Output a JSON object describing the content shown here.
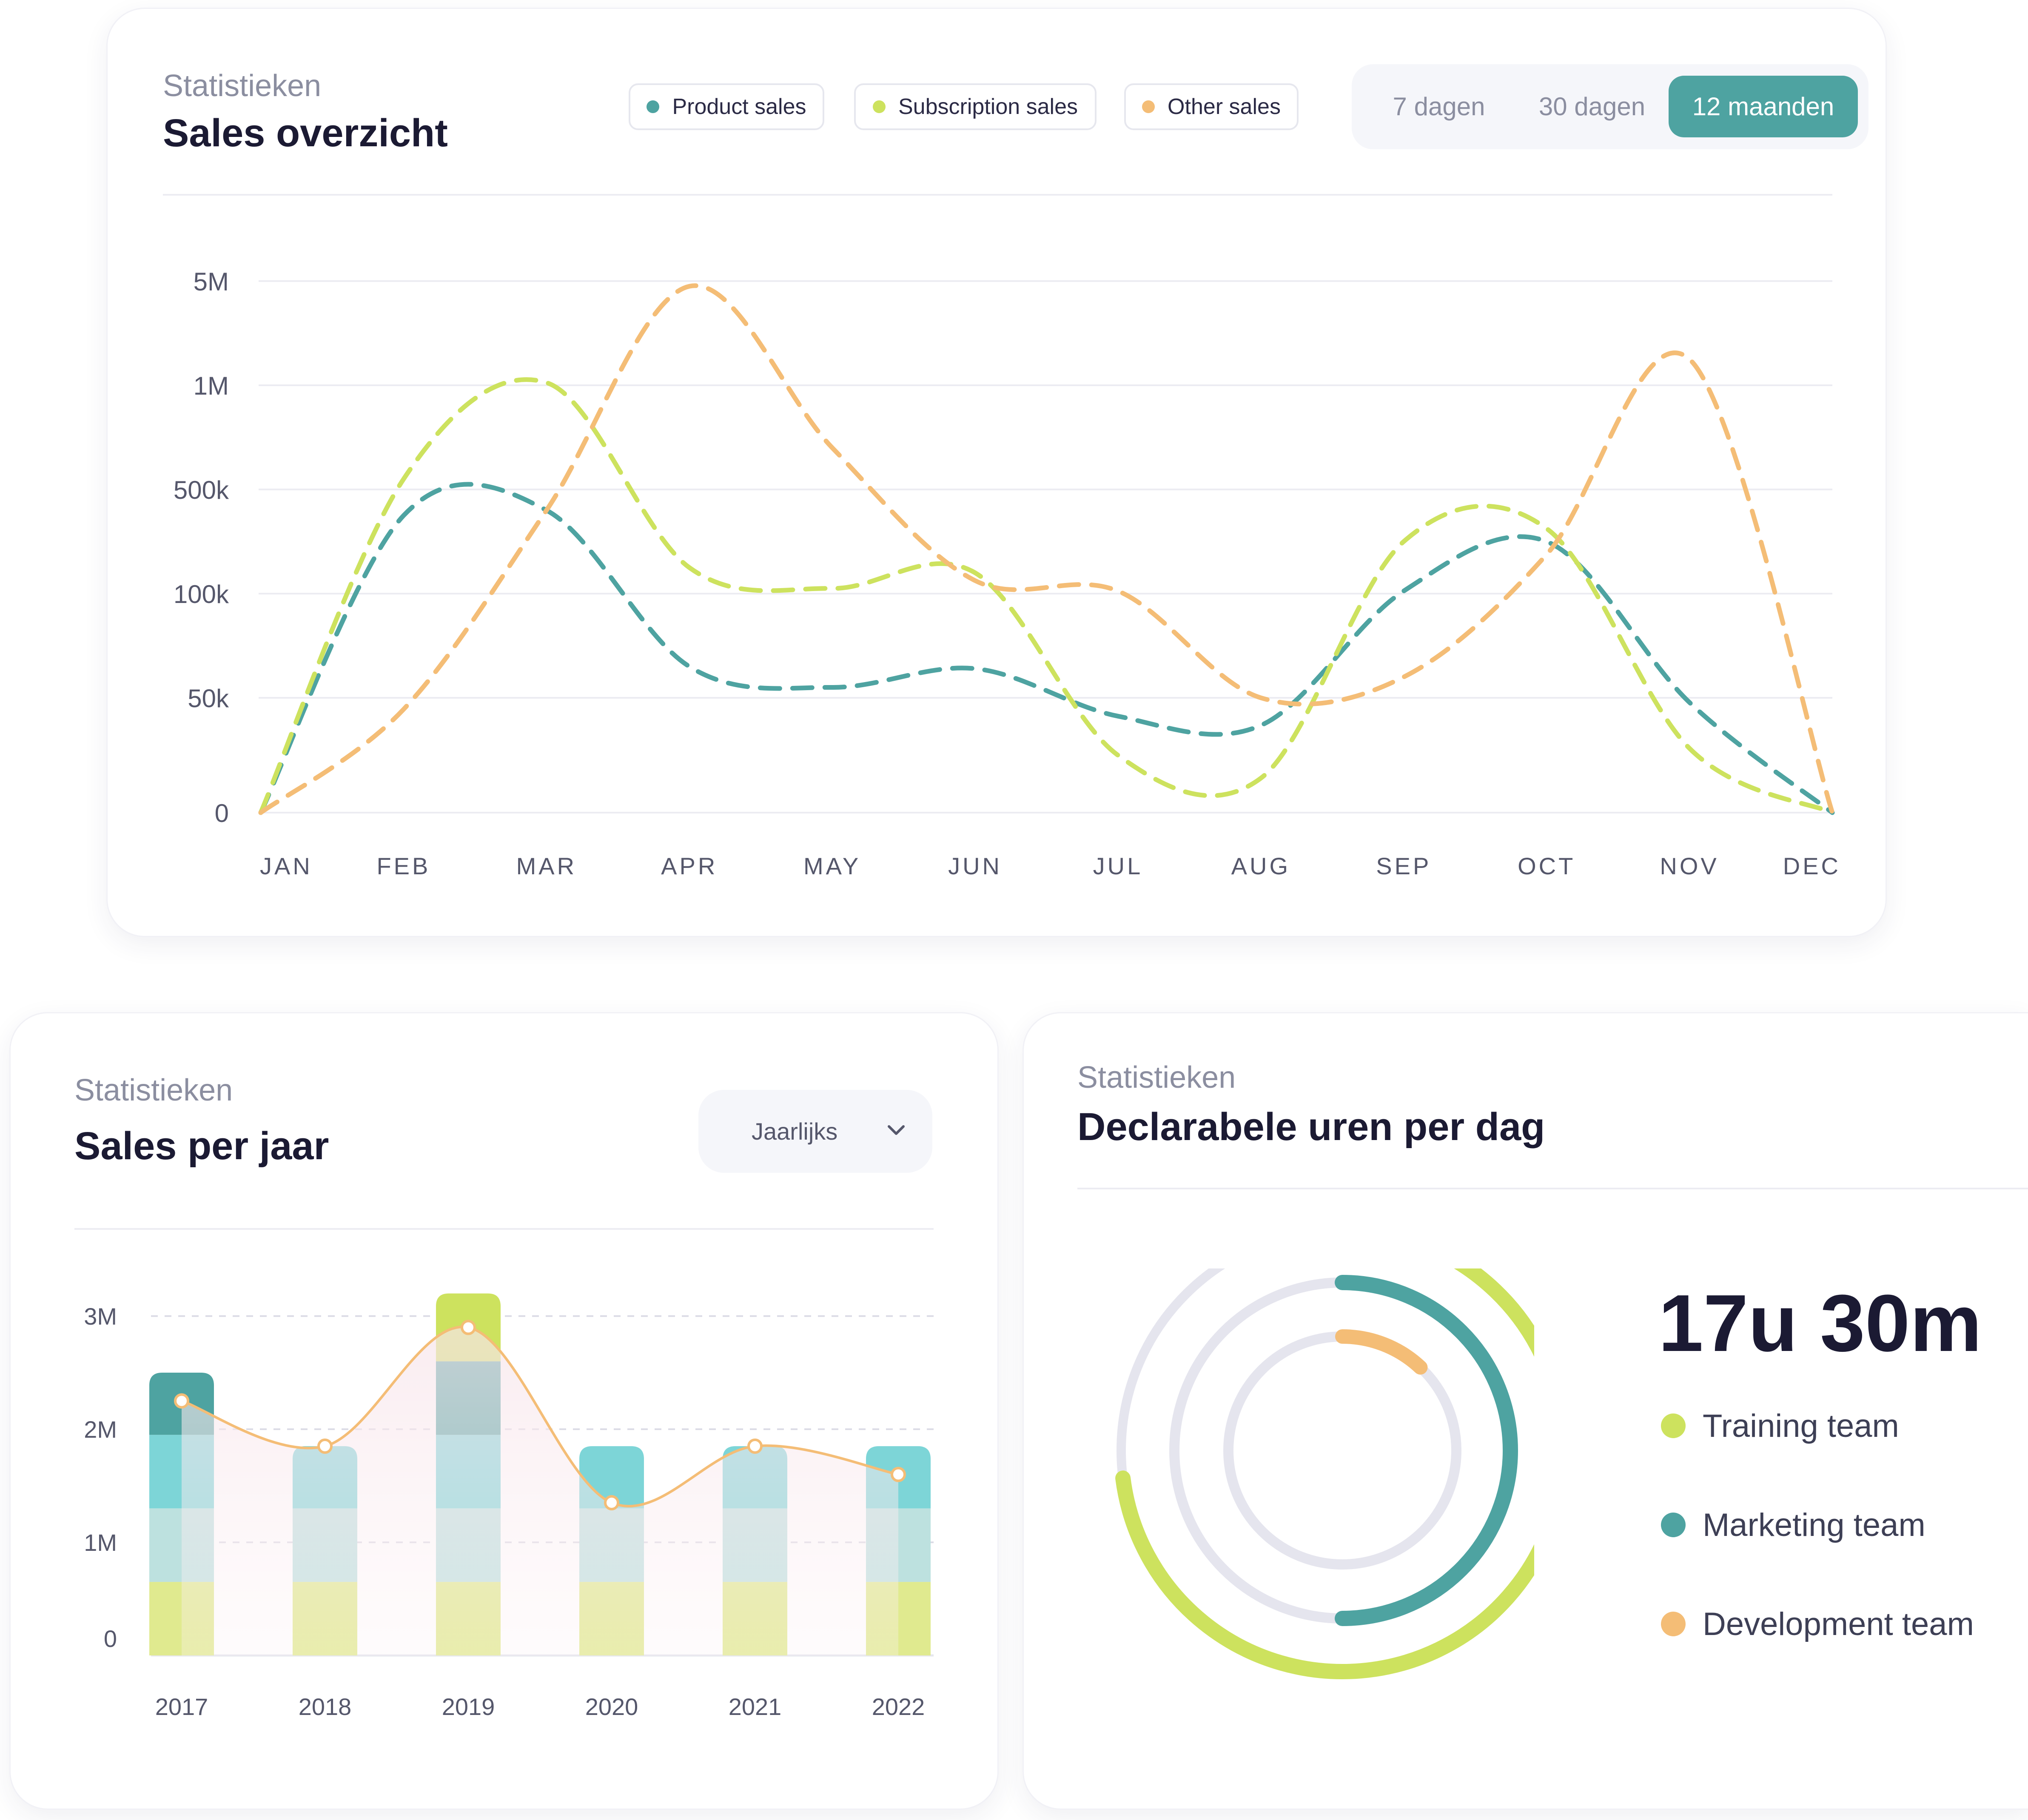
{
  "sales_overview": {
    "kicker": "Statistieken",
    "title": "Sales overzicht",
    "legend": [
      {
        "label": "Product sales",
        "color": "#4ea3a1"
      },
      {
        "label": "Subscription sales",
        "color": "#cde25e"
      },
      {
        "label": "Other sales",
        "color": "#f4bd76"
      }
    ],
    "periods": [
      "7 dagen",
      "30 dagen",
      "12 maanden"
    ],
    "active_period": "12 maanden"
  },
  "sales_per_year": {
    "kicker": "Statistieken",
    "title": "Sales per jaar",
    "dropdown_value": "Jaarlijks"
  },
  "hours": {
    "kicker": "Statistieken",
    "title": "Declarabele uren per dag",
    "total": "17u 30m",
    "teams": [
      {
        "label": "Training team",
        "color": "#cde25e"
      },
      {
        "label": "Marketing team",
        "color": "#4ea3a1"
      },
      {
        "label": "Development team",
        "color": "#f4bd76"
      }
    ]
  },
  "chart_data": [
    {
      "type": "line",
      "x": [
        "JAN",
        "FEB",
        "MAR",
        "APR",
        "MAY",
        "JUN",
        "JUL",
        "AUG",
        "SEP",
        "OCT",
        "NOV",
        "DEC"
      ],
      "y_ticks": [
        "0",
        "50k",
        "100k",
        "500k",
        "1M",
        "5M"
      ],
      "y_scale": "non-linear (0, 50k, 100k, 500k, 1M, 5M evenly spaced)",
      "series": [
        {
          "name": "Product sales",
          "color": "#4ea3a1",
          "values": [
            0,
            400000,
            420000,
            65000,
            55000,
            64000,
            42000,
            38000,
            110000,
            300000,
            48000,
            0
          ]
        },
        {
          "name": "Subscription sales",
          "color": "#cde25e",
          "values": [
            0,
            550000,
            1100000,
            200000,
            120000,
            180000,
            25000,
            15000,
            300000,
            350000,
            28000,
            0
          ]
        },
        {
          "name": "Other sales",
          "color": "#f4bd76",
          "values": [
            0,
            45000,
            420000,
            4800000,
            700000,
            150000,
            110000,
            50000,
            60000,
            250000,
            2000000,
            0
          ]
        }
      ],
      "style": "dashed smooth lines",
      "grid": true
    },
    {
      "type": "bar",
      "categories": [
        "2017",
        "2018",
        "2019",
        "2020",
        "2021",
        "2022"
      ],
      "y_ticks": [
        "0",
        "1M",
        "2M",
        "3M"
      ],
      "ylim": [
        0,
        3000000
      ],
      "bar_totals": [
        2500000,
        1850000,
        3200000,
        1850000,
        1850000,
        1850000
      ],
      "stack_segments": [
        {
          "color": "#e0ea8f",
          "values": [
            650000,
            650000,
            650000,
            650000,
            650000,
            650000
          ]
        },
        {
          "color": "#bde1df",
          "values": [
            650000,
            650000,
            650000,
            650000,
            650000,
            650000
          ]
        },
        {
          "color": "#7dd5d7",
          "values": [
            650000,
            550000,
            650000,
            550000,
            550000,
            550000
          ]
        },
        {
          "color": "#4ea3a1",
          "values": [
            550000,
            0,
            650000,
            0,
            0,
            0
          ]
        },
        {
          "color": "#cde25e",
          "values": [
            0,
            0,
            600000,
            0,
            0,
            0
          ]
        }
      ],
      "line_values": [
        2250000,
        1850000,
        2900000,
        1350000,
        1850000,
        1600000
      ],
      "line_color": "#f4bd76",
      "grid": "dashed"
    },
    {
      "type": "radial-progress",
      "series": [
        {
          "name": "Training team",
          "fraction": 0.73,
          "color": "#cde25e"
        },
        {
          "name": "Marketing team",
          "fraction": 0.5,
          "color": "#4ea3a1"
        },
        {
          "name": "Development team",
          "fraction": 0.12,
          "color": "#f4bd76"
        }
      ],
      "track_color": "#e5e5ee"
    }
  ]
}
